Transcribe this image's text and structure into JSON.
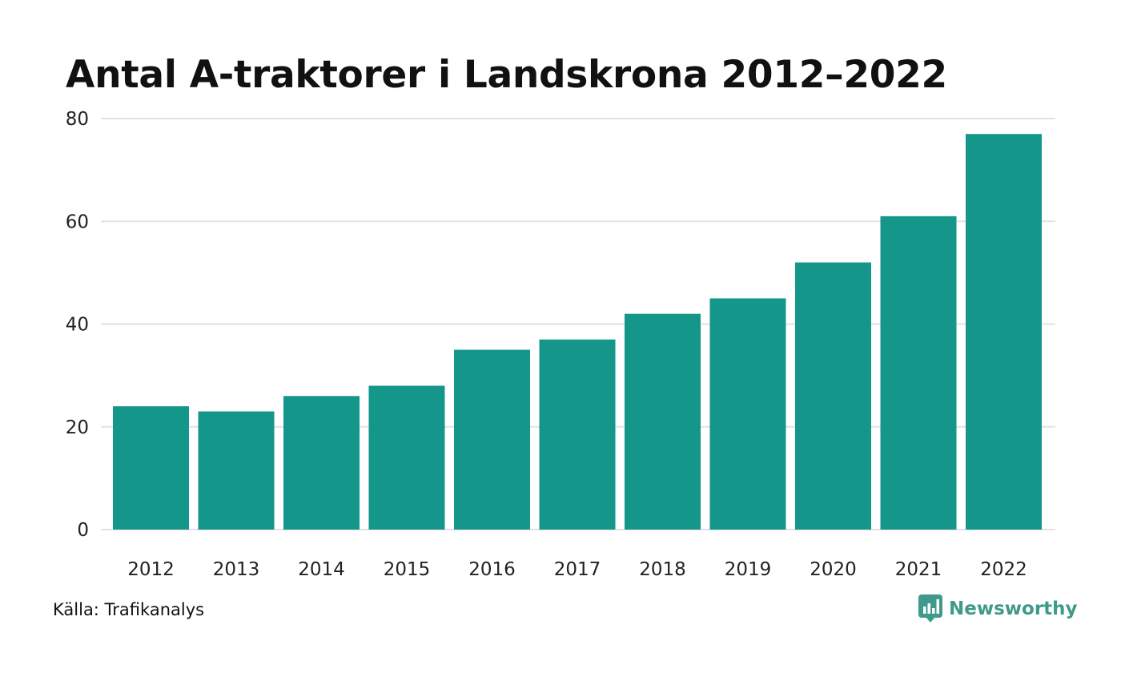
{
  "chart_data": {
    "type": "bar",
    "title": "Antal A-traktorer i Landskrona 2012–2022",
    "xlabel": "",
    "ylabel": "",
    "categories": [
      "2012",
      "2013",
      "2014",
      "2015",
      "2016",
      "2017",
      "2018",
      "2019",
      "2020",
      "2021",
      "2022"
    ],
    "values": [
      24,
      23,
      26,
      28,
      35,
      37,
      42,
      45,
      52,
      61,
      77
    ],
    "ylim": [
      0,
      80
    ],
    "yticks": [
      0,
      20,
      40,
      60,
      80
    ],
    "grid": true,
    "legend": "none",
    "bar_color": "#14968a",
    "grid_color": "#e2e2e2"
  },
  "footer": {
    "source": "Källa: Trafikanalys",
    "brand": "Newsworthy",
    "brand_color": "#3f9a8b",
    "brand_icon": "newsworthy-logo-icon"
  }
}
